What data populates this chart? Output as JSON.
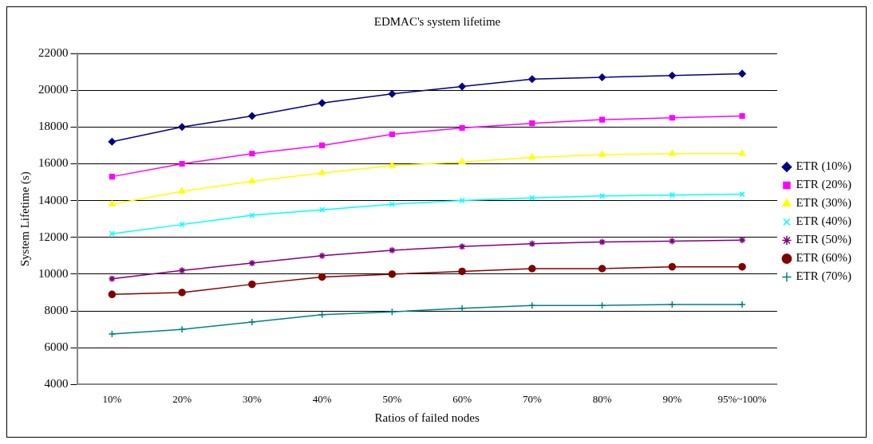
{
  "chart_data": {
    "type": "line",
    "title": "EDMAC's system lifetime",
    "xlabel": "Ratios of failed nodes",
    "ylabel": "System Lifetime (s)",
    "categories": [
      "10%",
      "20%",
      "30%",
      "40%",
      "50%",
      "60%",
      "70%",
      "80%",
      "90%",
      "95%~100%"
    ],
    "series": [
      {
        "name": "ETR (10%)",
        "color": "#000080",
        "marker": "diamond",
        "values": [
          17200,
          18000,
          18600,
          19300,
          19800,
          20200,
          20600,
          20700,
          20800,
          20900
        ]
      },
      {
        "name": "ETR (20%)",
        "color": "#ff00ff",
        "marker": "square",
        "values": [
          15300,
          16000,
          16550,
          17000,
          17600,
          17950,
          18200,
          18400,
          18500,
          18600
        ]
      },
      {
        "name": "ETR (30%)",
        "color": "#ffff00",
        "marker": "triangle",
        "values": [
          13800,
          14500,
          15050,
          15500,
          15900,
          16100,
          16350,
          16500,
          16550,
          16550
        ]
      },
      {
        "name": "ETR (40%)",
        "color": "#00ffff",
        "marker": "cross",
        "values": [
          12200,
          12700,
          13200,
          13500,
          13800,
          14000,
          14150,
          14250,
          14300,
          14350
        ]
      },
      {
        "name": "ETR (50%)",
        "color": "#800080",
        "marker": "cross",
        "values": [
          9750,
          10200,
          10600,
          11000,
          11300,
          11500,
          11650,
          11750,
          11800,
          11850
        ]
      },
      {
        "name": "ETR (60%)",
        "color": "#800000",
        "marker": "circle",
        "values": [
          8900,
          9000,
          9450,
          9850,
          10000,
          10150,
          10300,
          10300,
          10400,
          10400
        ]
      },
      {
        "name": "ETR (70%)",
        "color": "#008080",
        "marker": "cross",
        "values": [
          6750,
          7000,
          7400,
          7800,
          7950,
          8150,
          8300,
          8300,
          8350,
          8350
        ]
      }
    ],
    "ylim": [
      4000,
      22000
    ],
    "yticks": [
      4000,
      6000,
      8000,
      10000,
      12000,
      14000,
      16000,
      18000,
      20000,
      22000
    ],
    "grid": "y",
    "legend": "right",
    "line_style": "solid"
  }
}
